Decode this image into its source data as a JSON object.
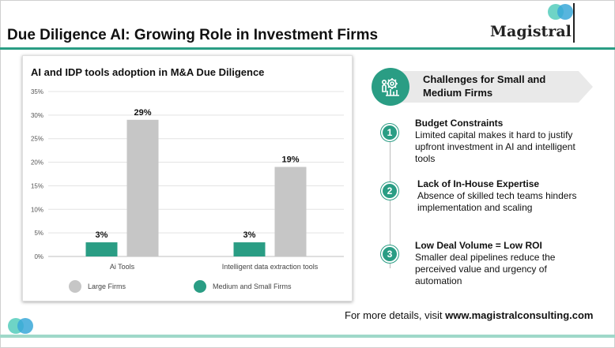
{
  "header": {
    "title": "Due Diligence AI: Growing Role in Investment Firms",
    "logo_text": "Magistral"
  },
  "colors": {
    "accent": "#2a9d84",
    "large_firms": "#c6c6c6",
    "medium_small_firms": "#2a9d84"
  },
  "chart_data": {
    "type": "bar",
    "title": "AI and IDP tools adoption in M&A Due Diligence",
    "categories": [
      "Ai Tools",
      "Intelligent data extraction tools"
    ],
    "series": [
      {
        "name": "Medium and Small Firms",
        "values": [
          3,
          3
        ],
        "labels": [
          "3%",
          "3%"
        ]
      },
      {
        "name": "Large Firms",
        "values": [
          29,
          19
        ],
        "labels": [
          "29%",
          "19%"
        ]
      }
    ],
    "yticks": [
      "0%",
      "5%",
      "10%",
      "15%",
      "20%",
      "25%",
      "30%",
      "35%"
    ],
    "ylim": [
      0,
      35
    ],
    "grid": true,
    "legend": [
      "Large Firms",
      "Medium and Small Firms"
    ],
    "legend_position": "bottom"
  },
  "challenges": {
    "heading": "Challenges for Small and Medium Firms",
    "icon": "gears-chart-icon",
    "items": [
      {
        "number": "1",
        "title": "Budget Constraints",
        "text": "Limited capital makes it hard to justify upfront investment in AI and intelligent tools"
      },
      {
        "number": "2",
        "title": "Lack of In-House Expertise",
        "text": "Absence of skilled tech teams hinders implementation and scaling"
      },
      {
        "number": "3",
        "title": "Low Deal Volume = Low ROI",
        "text": "Smaller deal pipelines reduce the perceived value and urgency of automation"
      }
    ]
  },
  "footer": {
    "prefix": "For more details, visit ",
    "link": "www.magistralconsulting.com"
  }
}
